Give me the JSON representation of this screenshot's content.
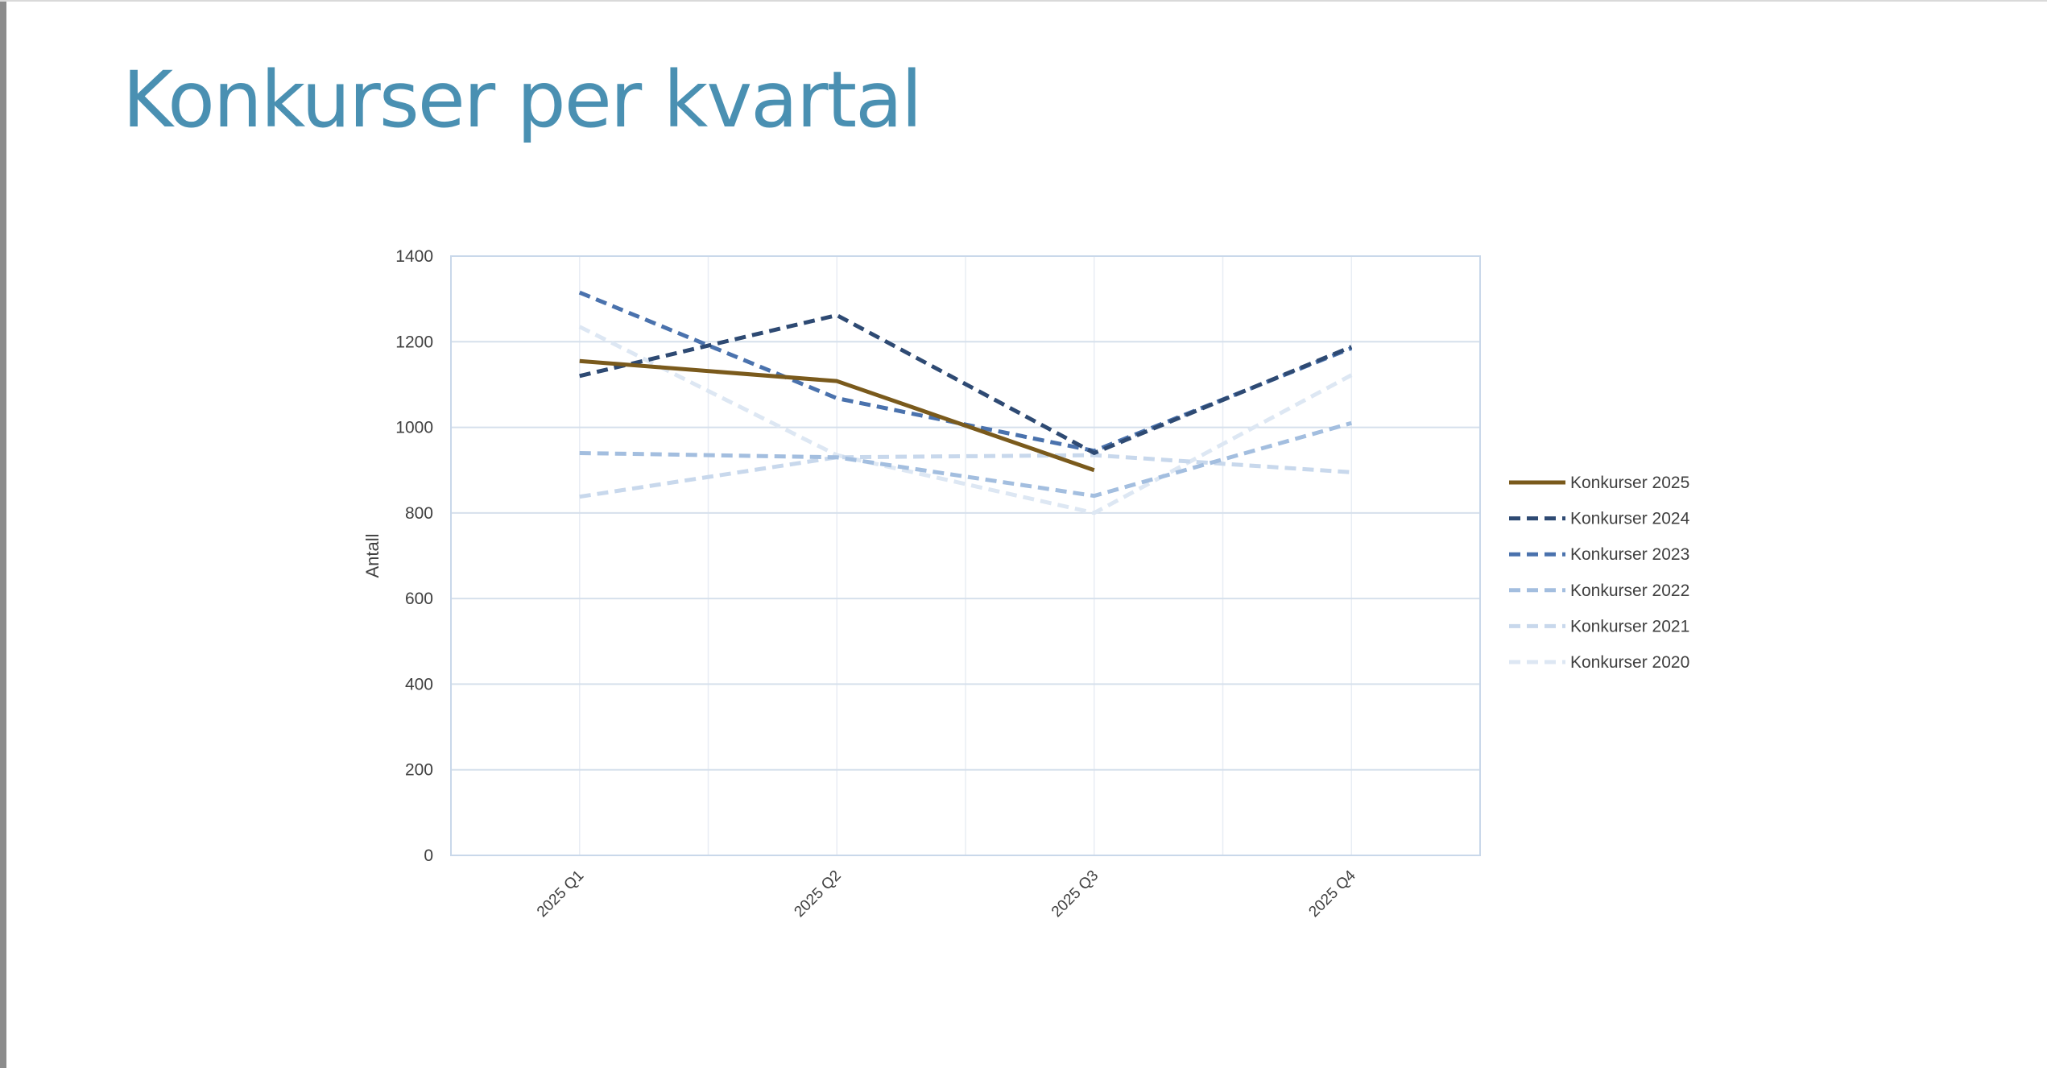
{
  "slide": {
    "title": "Konkurser per kvartal"
  },
  "chart_data": {
    "type": "line",
    "title": "",
    "xlabel": "",
    "ylabel": "Antall",
    "ylim": [
      0,
      1400
    ],
    "yticks": [
      0,
      200,
      400,
      600,
      800,
      1000,
      1200,
      1400
    ],
    "categories": [
      "2025 Q1",
      "2025 Q2",
      "2025 Q3",
      "2025 Q4"
    ],
    "grid": true,
    "legend_position": "right",
    "series": [
      {
        "name": "Konkurser 2025",
        "values": [
          1155,
          1108,
          900,
          null
        ],
        "color": "#7a5a1c",
        "dashed": false
      },
      {
        "name": "Konkurser 2024",
        "values": [
          1120,
          1262,
          940,
          1188
        ],
        "color": "#2e4a73",
        "dashed": true
      },
      {
        "name": "Konkurser 2023",
        "values": [
          1315,
          1068,
          945,
          1185
        ],
        "color": "#4a72ad",
        "dashed": true
      },
      {
        "name": "Konkurser 2022",
        "values": [
          940,
          930,
          840,
          1010
        ],
        "color": "#a3bedf",
        "dashed": true
      },
      {
        "name": "Konkurser 2021",
        "values": [
          838,
          930,
          935,
          895
        ],
        "color": "#c8d8ec",
        "dashed": true
      },
      {
        "name": "Konkurser 2020",
        "values": [
          1235,
          935,
          800,
          1122
        ],
        "color": "#dde7f3",
        "dashed": true
      }
    ]
  }
}
